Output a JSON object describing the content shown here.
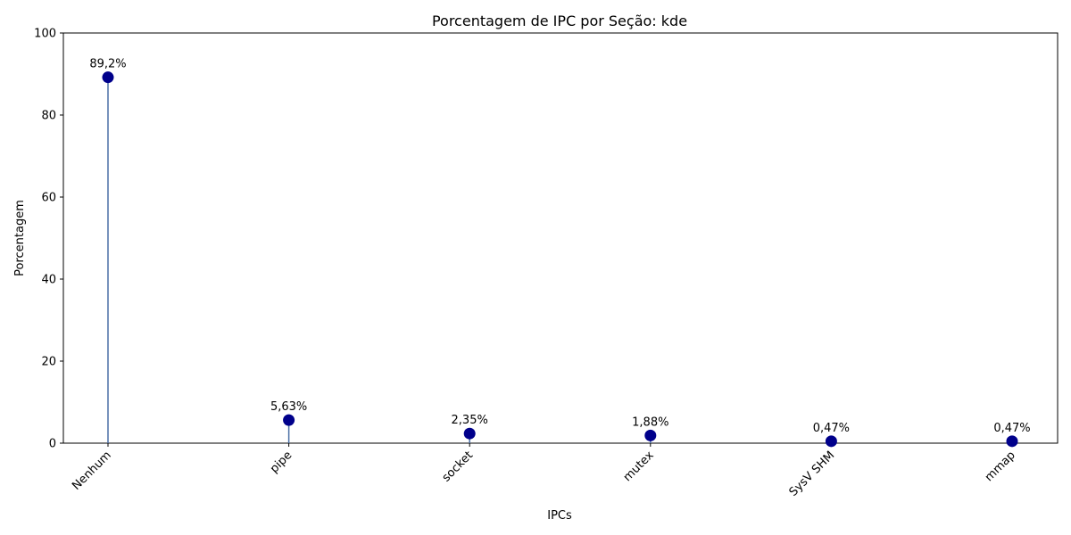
{
  "chart_data": {
    "type": "lollipop",
    "title": "Porcentagem de IPC por Seção: kde",
    "xlabel": "IPCs",
    "ylabel": "Porcentagem",
    "categories": [
      "Nenhum",
      "pipe",
      "socket",
      "mutex",
      "SysV SHM",
      "mmap"
    ],
    "values": [
      89.2,
      5.63,
      2.35,
      1.88,
      0.47,
      0.47
    ],
    "value_labels": [
      "89,2%",
      "5,63%",
      "2,35%",
      "1,88%",
      "0,47%",
      "0,47%"
    ],
    "ylim": [
      0,
      100
    ],
    "yticks": [
      0,
      20,
      40,
      60,
      80,
      100
    ],
    "grid": false,
    "colors": {
      "stem": "#4a6fa5",
      "marker": "#00008b"
    }
  }
}
